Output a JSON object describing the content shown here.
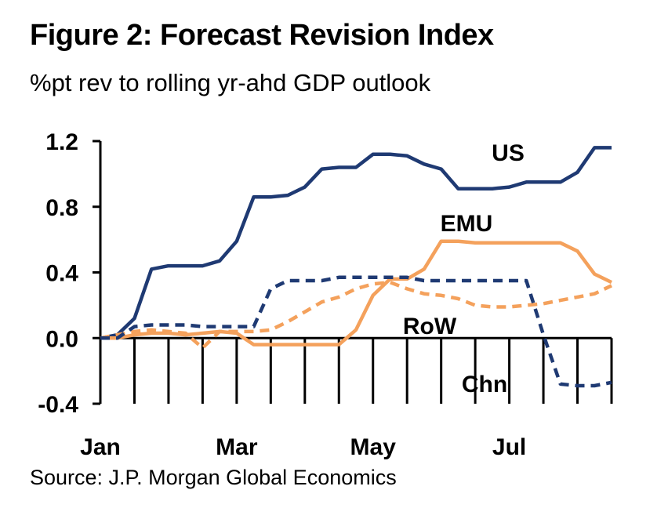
{
  "header": {
    "title": "Figure 2: Forecast Revision Index",
    "subtitle": "%pt rev to rolling yr-ahd GDP outlook"
  },
  "footer": {
    "source": "Source: J.P. Morgan Global Economics"
  },
  "chart_data": {
    "type": "line",
    "title": "Figure 2: Forecast Revision Index",
    "subtitle": "%pt rev to rolling yr-ahd GDP outlook",
    "xlabel": "",
    "ylabel": "",
    "ylim": [
      -0.4,
      1.2
    ],
    "xlim": [
      0,
      30
    ],
    "yticks": [
      -0.4,
      0.0,
      0.4,
      0.8,
      1.2
    ],
    "ytick_labels": [
      "-0.4",
      "0.0",
      "0.4",
      "0.8",
      "1.2"
    ],
    "xtick_labels": [
      {
        "label": "Jan",
        "x": 0
      },
      {
        "label": "Mar",
        "x": 8
      },
      {
        "label": "May",
        "x": 16
      },
      {
        "label": "Jul",
        "x": 24
      }
    ],
    "grid": false,
    "legend": "none (series labelled directly on chart)",
    "x": [
      0,
      1,
      2,
      3,
      4,
      5,
      6,
      7,
      8,
      9,
      10,
      11,
      12,
      13,
      14,
      15,
      16,
      17,
      18,
      19,
      20,
      21,
      22,
      23,
      24,
      25,
      26,
      27,
      28,
      29,
      30
    ],
    "series": [
      {
        "name": "US",
        "color": "#1f3a73",
        "dashed": false,
        "values": [
          0.0,
          0.02,
          0.12,
          0.42,
          0.44,
          0.44,
          0.44,
          0.47,
          0.59,
          0.86,
          0.86,
          0.87,
          0.92,
          1.03,
          1.04,
          1.04,
          1.12,
          1.12,
          1.11,
          1.06,
          1.03,
          0.91,
          0.91,
          0.91,
          0.92,
          0.95,
          0.95,
          0.95,
          1.01,
          1.16,
          1.16
        ]
      },
      {
        "name": "EMU",
        "color": "#f4a15c",
        "dashed": false,
        "values": [
          0.0,
          0.0,
          0.02,
          0.03,
          0.03,
          0.02,
          0.03,
          0.04,
          0.03,
          -0.04,
          -0.04,
          -0.04,
          -0.04,
          -0.04,
          -0.04,
          0.05,
          0.26,
          0.36,
          0.36,
          0.42,
          0.59,
          0.59,
          0.58,
          0.58,
          0.58,
          0.58,
          0.58,
          0.58,
          0.53,
          0.39,
          0.34
        ]
      },
      {
        "name": "RoW",
        "color": "#f4a15c",
        "dashed": true,
        "values": [
          0.0,
          0.02,
          0.04,
          0.05,
          0.04,
          0.03,
          -0.06,
          0.04,
          0.04,
          0.04,
          0.05,
          0.1,
          0.16,
          0.22,
          0.25,
          0.3,
          0.33,
          0.34,
          0.3,
          0.27,
          0.26,
          0.24,
          0.2,
          0.19,
          0.19,
          0.2,
          0.21,
          0.23,
          0.25,
          0.27,
          0.32
        ]
      },
      {
        "name": "Chn",
        "color": "#1f3a73",
        "dashed": true,
        "values": [
          0.0,
          0.0,
          0.07,
          0.08,
          0.08,
          0.08,
          0.07,
          0.07,
          0.07,
          0.07,
          0.3,
          0.35,
          0.35,
          0.35,
          0.37,
          0.37,
          0.37,
          0.37,
          0.37,
          0.35,
          0.35,
          0.35,
          0.35,
          0.35,
          0.35,
          0.35,
          0.02,
          -0.28,
          -0.29,
          -0.29,
          -0.27
        ]
      }
    ]
  }
}
